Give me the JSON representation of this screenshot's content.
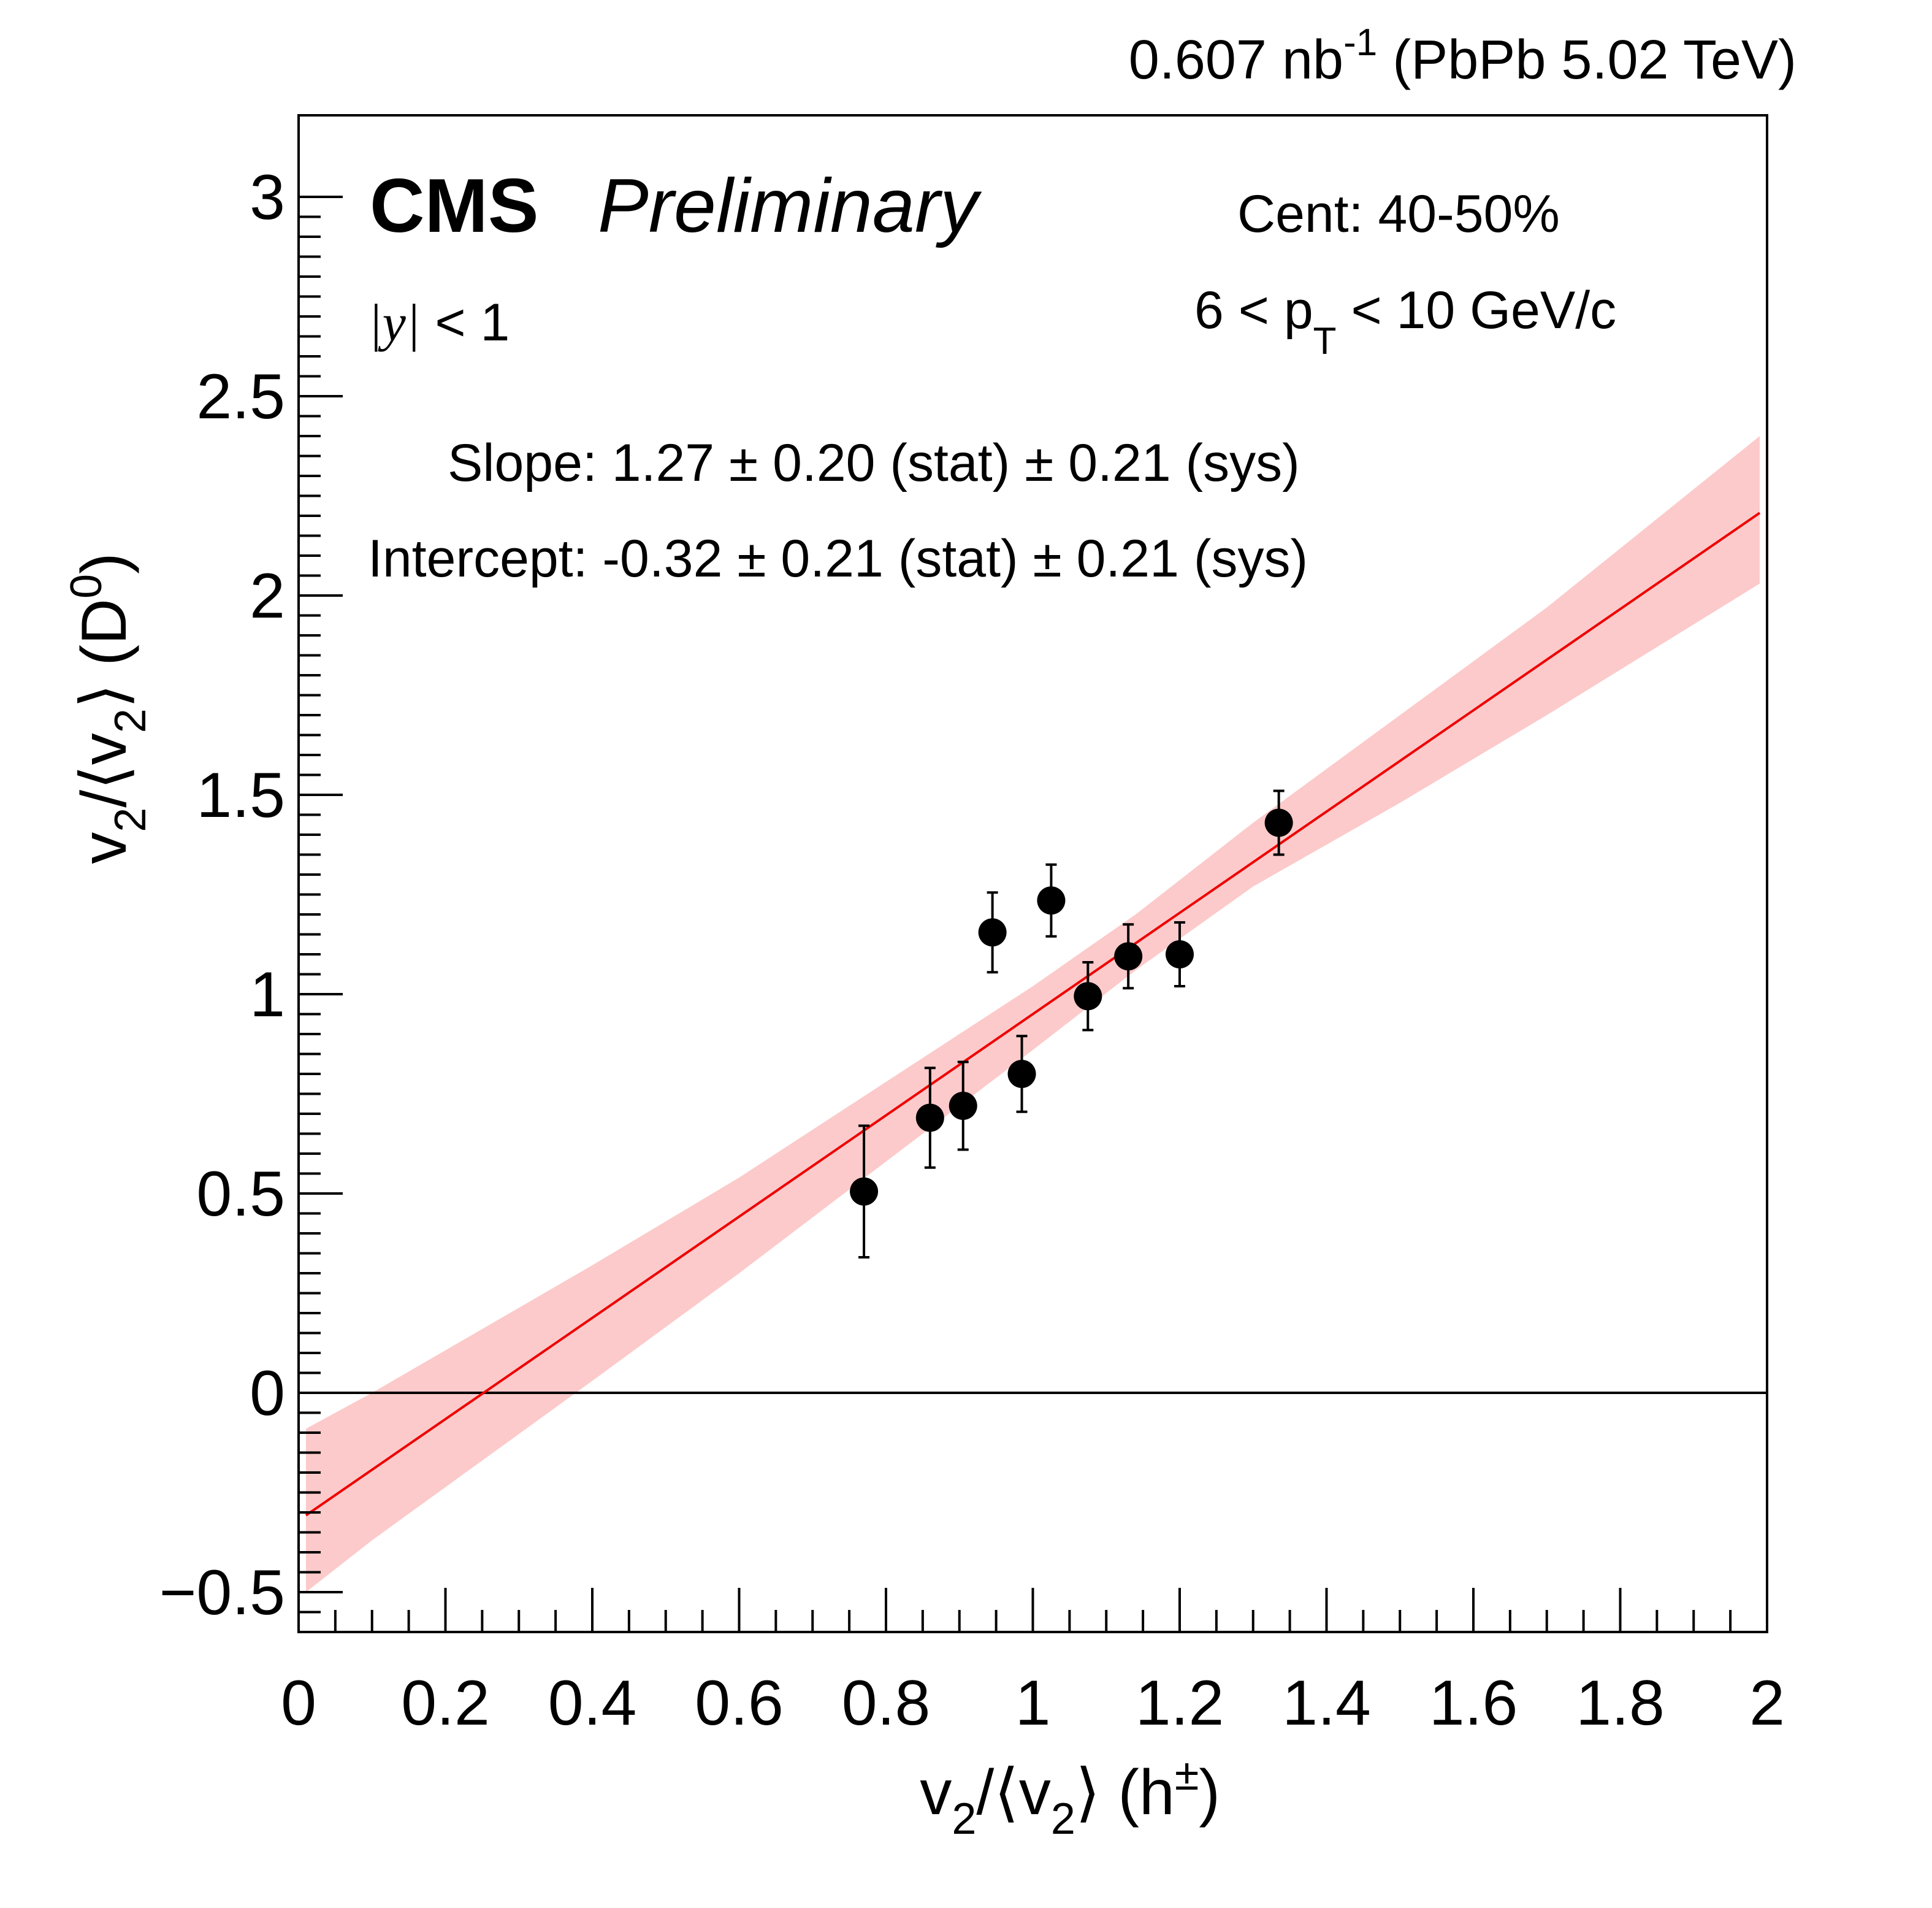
{
  "chart_data": {
    "type": "scatter",
    "title": "",
    "lumi_text": "0.607 nb⁻¹ (PbPb 5.02 TeV)",
    "lumi_main": "0.607 nb",
    "lumi_sup": "-1",
    "lumi_tail": " (PbPb 5.02 TeV)",
    "experiment": "CMS",
    "status": "Preliminary",
    "centrality": "Cent: 40-50%",
    "rapidity": {
      "var": "|y|",
      "cut": " < 1"
    },
    "pt_range": {
      "pre": "6 < p",
      "sub": "T",
      "post": " < 10 GeV/c"
    },
    "slope_text": "Slope: 1.27 ± 0.20 (stat) ± 0.21 (sys)",
    "intercept_text": "Intercept: -0.32 ± 0.21 (stat) ± 0.21 (sys)",
    "xlabel": "v2/⟨v2⟩ (h±)",
    "ylabel": "v2/⟨v2⟩ (D0)",
    "xlim": [
      0,
      2
    ],
    "ylim": [
      -0.6,
      3.2
    ],
    "xticks": [
      0,
      0.2,
      0.4,
      0.6,
      0.8,
      1,
      1.2,
      1.4,
      1.6,
      1.8,
      2
    ],
    "xtick_labels": [
      "0",
      "0.2",
      "0.4",
      "0.6",
      "0.8",
      "1",
      "1.2",
      "1.4",
      "1.6",
      "1.8",
      "2"
    ],
    "yticks": [
      -0.5,
      0,
      0.5,
      1,
      1.5,
      2,
      2.5,
      3
    ],
    "ytick_labels": [
      "−0.5",
      "0",
      "0.5",
      "1",
      "1.5",
      "2",
      "2.5",
      "3"
    ],
    "points": [
      {
        "x": 0.77,
        "y": 0.505,
        "err": 0.165
      },
      {
        "x": 0.86,
        "y": 0.69,
        "err": 0.125
      },
      {
        "x": 0.905,
        "y": 0.72,
        "err": 0.11
      },
      {
        "x": 0.945,
        "y": 1.155,
        "err": 0.1
      },
      {
        "x": 0.985,
        "y": 0.8,
        "err": 0.095
      },
      {
        "x": 1.025,
        "y": 1.235,
        "err": 0.09
      },
      {
        "x": 1.075,
        "y": 0.995,
        "err": 0.085
      },
      {
        "x": 1.13,
        "y": 1.095,
        "err": 0.08
      },
      {
        "x": 1.2,
        "y": 1.1,
        "err": 0.08
      },
      {
        "x": 1.335,
        "y": 1.43,
        "err": 0.08
      }
    ],
    "fit": {
      "slope": 1.27,
      "intercept": -0.32,
      "x_start": 0.01,
      "x_end": 1.99
    },
    "band": {
      "x": [
        0.01,
        0.1,
        0.25,
        0.4,
        0.6,
        0.8,
        1.0,
        1.14,
        1.3,
        1.5,
        1.7,
        1.99
      ],
      "lower": [
        -0.5,
        -0.37,
        -0.17,
        0.03,
        0.3,
        0.58,
        0.86,
        1.06,
        1.27,
        1.48,
        1.7,
        2.03
      ],
      "upper": [
        -0.09,
        0.0,
        0.16,
        0.32,
        0.54,
        0.78,
        1.02,
        1.2,
        1.43,
        1.7,
        1.97,
        2.4
      ]
    },
    "colors": {
      "fit_line": "#ee0000",
      "band": "#fccaca",
      "marker": "#000000",
      "axis": "#000000"
    },
    "grid": false
  }
}
